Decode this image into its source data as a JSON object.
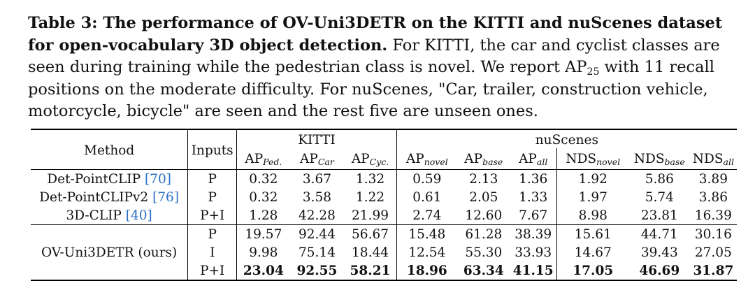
{
  "caption": {
    "label": "Table 3: The performance of OV-Uni3DETR on the KITTI and nuScenes dataset for open-vocabulary 3D object detection.",
    "text_1": " For KITTI, the car and cyclist classes are seen during training while the pedestrian class is novel. We report AP",
    "ap_sub": "25",
    "text_2": " with 11 recall positions on the moderate difficulty. For nuScenes, \"Car, trailer, construction vehicle, motorcycle, bicycle\" are seen and the rest five are unseen ones."
  },
  "table": {
    "header": {
      "method": "Method",
      "inputs": "Inputs",
      "kitti": "KITTI",
      "nuscenes": "nuScenes",
      "cols": [
        {
          "base": "AP",
          "sub": "Ped."
        },
        {
          "base": "AP",
          "sub": "Car"
        },
        {
          "base": "AP",
          "sub": "Cyc."
        },
        {
          "base": "AP",
          "sub": "novel"
        },
        {
          "base": "AP",
          "sub": "base"
        },
        {
          "base": "AP",
          "sub": "all"
        },
        {
          "base": "NDS",
          "sub": "novel"
        },
        {
          "base": "NDS",
          "sub": "base"
        },
        {
          "base": "NDS",
          "sub": "all"
        }
      ]
    },
    "rows": [
      {
        "method": "Det-PointCLIP ",
        "ref": "[70]",
        "input": "P",
        "values": [
          "0.32",
          "3.67",
          "1.32",
          "0.59",
          "2.13",
          "1.36",
          "1.92",
          "5.86",
          "3.89"
        ]
      },
      {
        "method": "Det-PointCLIPv2 ",
        "ref": "[76]",
        "input": "P",
        "values": [
          "0.32",
          "3.58",
          "1.22",
          "0.61",
          "2.05",
          "1.33",
          "1.97",
          "5.74",
          "3.86"
        ]
      },
      {
        "method": "3D-CLIP ",
        "ref": "[40]",
        "input": "P+I",
        "values": [
          "1.28",
          "42.28",
          "21.99",
          "2.74",
          "12.60",
          "7.67",
          "8.98",
          "23.81",
          "16.39"
        ]
      }
    ],
    "ours": {
      "method": "OV-Uni3DETR (ours)",
      "rows": [
        {
          "input": "P",
          "values": [
            "19.57",
            "92.44",
            "56.67",
            "15.48",
            "61.28",
            "38.39",
            "15.61",
            "44.71",
            "30.16"
          ]
        },
        {
          "input": "I",
          "values": [
            "9.98",
            "75.14",
            "18.44",
            "12.54",
            "55.30",
            "33.93",
            "14.67",
            "39.43",
            "27.05"
          ]
        },
        {
          "input": "P+I",
          "values": [
            "23.04",
            "92.55",
            "58.21",
            "18.96",
            "63.34",
            "41.15",
            "17.05",
            "46.69",
            "31.87"
          ]
        }
      ]
    }
  }
}
